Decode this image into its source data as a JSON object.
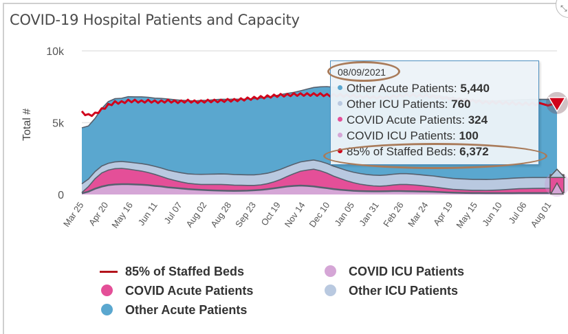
{
  "panel": {
    "title": "COVID-19 Hospital Patients and Capacity",
    "expand_icon": "expand-arrows-icon"
  },
  "colors": {
    "other_acute": "#5aa7cf",
    "other_icu": "#b9c9e0",
    "covid_acute": "#e44f98",
    "covid_icu": "#d5a6d6",
    "staffed_beds": "#d0021b",
    "band_outline": "#56606e",
    "annotation": "#a97b5a"
  },
  "chart_data": {
    "type": "area",
    "stacked": true,
    "title": "COVID-19 Hospital Patients and Capacity",
    "xlabel": "",
    "ylabel": "Total #",
    "ylim": [
      0,
      10000
    ],
    "yticks": [
      0,
      5000,
      10000
    ],
    "ytick_labels": [
      "0",
      "5k",
      "10k"
    ],
    "xtick_labels": [
      "Mar 25",
      "Apr 20",
      "May 16",
      "Jun 11",
      "Jul 07",
      "Aug 02",
      "Aug 28",
      "Sep 23",
      "Oct 19",
      "Nov 14",
      "Dec 10",
      "Jan 05",
      "Jan 31",
      "Feb 26",
      "Mar 24",
      "Apr 19",
      "May 15",
      "Jun 10",
      "Jul 06",
      "Aug 01"
    ],
    "x_start": "2020-03-25",
    "x_end": "2021-08-09",
    "x_step_days": 7,
    "grid": "horizontal",
    "legend_position": "bottom",
    "series": [
      {
        "name": "COVID ICU Patients",
        "key": "covid_icu",
        "values": [
          80,
          200,
          400,
          550,
          650,
          700,
          720,
          720,
          700,
          680,
          650,
          600,
          560,
          500,
          460,
          420,
          380,
          350,
          320,
          300,
          280,
          270,
          260,
          250,
          260,
          270,
          290,
          320,
          370,
          430,
          500,
          560,
          600,
          620,
          600,
          560,
          500,
          440,
          380,
          330,
          290,
          260,
          240,
          230,
          220,
          220,
          230,
          240,
          240,
          230,
          220,
          210,
          200,
          190,
          170,
          150,
          130,
          120,
          110,
          100,
          100,
          95,
          95,
          95,
          95,
          95,
          100,
          100,
          100,
          100,
          100
        ]
      },
      {
        "name": "COVID Acute Patients",
        "key": "covid_acute",
        "values": [
          60,
          350,
          700,
          950,
          1050,
          1100,
          1100,
          1050,
          1000,
          950,
          880,
          800,
          700,
          600,
          520,
          450,
          400,
          380,
          380,
          400,
          420,
          430,
          420,
          400,
          380,
          360,
          340,
          350,
          380,
          450,
          550,
          700,
          850,
          1000,
          1100,
          1200,
          1150,
          1050,
          900,
          780,
          660,
          560,
          480,
          420,
          380,
          360,
          380,
          420,
          460,
          470,
          450,
          420,
          380,
          340,
          300,
          260,
          230,
          210,
          200,
          190,
          190,
          190,
          200,
          220,
          250,
          280,
          300,
          310,
          320,
          324,
          324
        ]
      },
      {
        "name": "Other ICU Patients",
        "key": "other_icu",
        "values": [
          600,
          520,
          500,
          480,
          470,
          470,
          480,
          490,
          500,
          520,
          540,
          560,
          580,
          600,
          620,
          640,
          660,
          680,
          700,
          710,
          720,
          730,
          740,
          740,
          740,
          740,
          740,
          740,
          730,
          720,
          700,
          680,
          660,
          650,
          640,
          640,
          650,
          670,
          690,
          710,
          720,
          730,
          740,
          740,
          750,
          750,
          750,
          750,
          750,
          750,
          750,
          750,
          750,
          760,
          760,
          760,
          760,
          760,
          760,
          760,
          760,
          760,
          760,
          760,
          760,
          760,
          760,
          760,
          760,
          760,
          760
        ]
      },
      {
        "name": "Other Acute Patients",
        "key": "other_acute",
        "values": [
          3900,
          3700,
          3700,
          4000,
          4300,
          4400,
          4400,
          4550,
          4600,
          4650,
          4700,
          4750,
          4850,
          4950,
          5000,
          5050,
          5100,
          5100,
          5150,
          5150,
          5180,
          5200,
          5200,
          5250,
          5250,
          5280,
          5300,
          5300,
          5300,
          5250,
          5200,
          5100,
          5000,
          4950,
          5000,
          5050,
          5200,
          5350,
          5500,
          5600,
          5700,
          5750,
          5800,
          5800,
          5800,
          5800,
          5800,
          5750,
          5700,
          5700,
          5700,
          5700,
          5700,
          5650,
          5650,
          5620,
          5600,
          5580,
          5550,
          5520,
          5500,
          5480,
          5460,
          5450,
          5440,
          5430,
          5430,
          5440,
          5440,
          5440,
          5440
        ]
      },
      {
        "name": "85% of Staffed Beds",
        "key": "staffed_beds",
        "type": "line",
        "values": [
          5800,
          5600,
          5700,
          6000,
          6300,
          6500,
          6500,
          6600,
          6600,
          6550,
          6600,
          6550,
          6550,
          6600,
          6550,
          6550,
          6600,
          6550,
          6550,
          6600,
          6600,
          6600,
          6650,
          6650,
          6700,
          6750,
          6800,
          6850,
          6900,
          6950,
          7000,
          7000,
          7050,
          7050,
          7050,
          7050,
          7050,
          7000,
          7000,
          7000,
          6950,
          6950,
          6900,
          6900,
          6850,
          6850,
          6850,
          6900,
          6950,
          7000,
          7000,
          6950,
          6950,
          6900,
          6850,
          6800,
          6750,
          6700,
          6650,
          6600,
          6550,
          6500,
          6500,
          6500,
          6450,
          6450,
          6400,
          6400,
          6400,
          6380,
          6372
        ]
      }
    ]
  },
  "tooltip": {
    "date": "08/09/2021",
    "rows": [
      {
        "label": "Other Acute Patients: ",
        "value": "5,440",
        "color_key": "other_acute"
      },
      {
        "label": "Other ICU Patients: ",
        "value": "760",
        "color_key": "other_icu"
      },
      {
        "label": "COVID Acute Patients: ",
        "value": "324",
        "color_key": "covid_acute"
      },
      {
        "label": "COVID ICU Patients: ",
        "value": "100",
        "color_key": "covid_icu"
      },
      {
        "label": "85% of Staffed Beds: ",
        "value": "6,372",
        "color_key": "staffed_beds"
      }
    ]
  },
  "legend": {
    "items": [
      {
        "label": "85% of Staffed Beds",
        "shape": "line",
        "color_key": "staffed_beds"
      },
      {
        "label": "COVID Acute Patients",
        "shape": "dot",
        "color_key": "covid_acute"
      },
      {
        "label": "Other Acute Patients",
        "shape": "dot",
        "color_key": "other_acute"
      },
      {
        "label": "COVID ICU Patients",
        "shape": "dot",
        "color_key": "covid_icu"
      },
      {
        "label": "Other ICU Patients",
        "shape": "dot",
        "color_key": "other_icu"
      }
    ]
  }
}
